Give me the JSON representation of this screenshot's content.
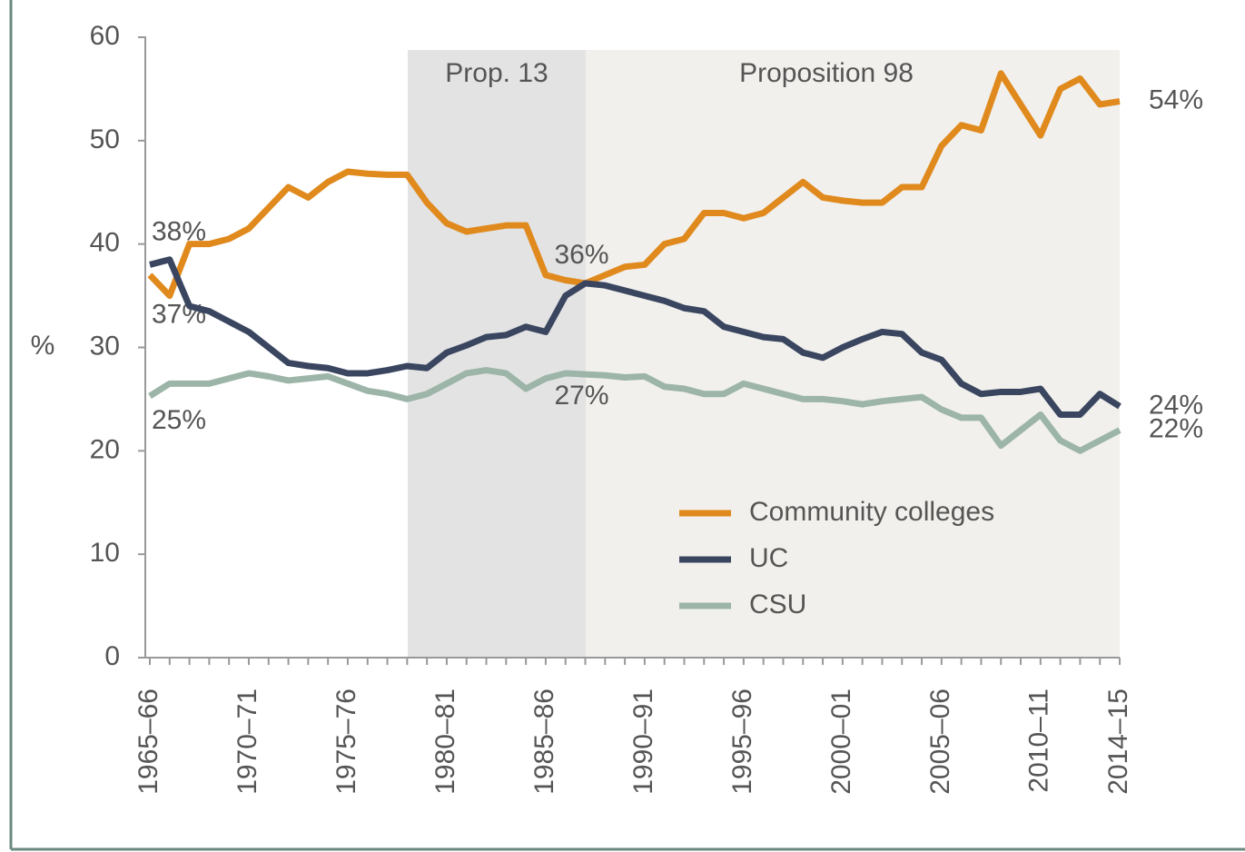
{
  "chart_data": {
    "type": "line",
    "y_label": "%",
    "annotations": [
      "Prop. 13",
      "Proposition 98"
    ],
    "categories": [
      "1965–66",
      null,
      null,
      null,
      null,
      "1970–71",
      null,
      null,
      null,
      null,
      "1975–76",
      null,
      null,
      null,
      null,
      "1980–81",
      null,
      null,
      null,
      null,
      "1985–86",
      null,
      null,
      null,
      null,
      "1990–91",
      null,
      null,
      null,
      null,
      "1995–96",
      null,
      null,
      null,
      null,
      "2000–01",
      null,
      null,
      null,
      null,
      "2005–06",
      null,
      null,
      null,
      null,
      "2010–11",
      null,
      null,
      null,
      "2014–15"
    ],
    "series": [
      {
        "name": "Community colleges",
        "color": "#e08a1e",
        "values": [
          37,
          35,
          40,
          40,
          40.5,
          41.5,
          43.5,
          45.5,
          44.5,
          46,
          47,
          46.8,
          46.7,
          46.7,
          44,
          42,
          41.2,
          41.5,
          41.8,
          41.8,
          37,
          36.5,
          36.2,
          37,
          37.8,
          38,
          40,
          40.5,
          43,
          43,
          42.5,
          43,
          44.5,
          46,
          44.5,
          44.2,
          44,
          44,
          45.5,
          45.5,
          49.5,
          51.5,
          51,
          56.5,
          53.5,
          50.5,
          55,
          56,
          53.5,
          53.8
        ],
        "value_labels": [
          "37%",
          null,
          null,
          null,
          null,
          null,
          null,
          null,
          null,
          null,
          null,
          null,
          null,
          null,
          null,
          null,
          null,
          null,
          null,
          null,
          null,
          null,
          null,
          null,
          null,
          null,
          null,
          null,
          null,
          null,
          null,
          null,
          null,
          null,
          null,
          null,
          null,
          null,
          null,
          null,
          null,
          null,
          null,
          null,
          null,
          null,
          null,
          null,
          null,
          "54%"
        ]
      },
      {
        "name": "UC",
        "color": "#3a4660",
        "values": [
          38,
          38.5,
          34,
          33.5,
          32.5,
          31.5,
          30,
          28.5,
          28.2,
          28,
          27.5,
          27.5,
          27.8,
          28.2,
          28,
          29.5,
          30.2,
          31,
          31.2,
          32,
          31.5,
          35,
          36.2,
          36,
          35.5,
          35,
          34.5,
          33.8,
          33.5,
          32,
          31.5,
          31,
          30.8,
          29.5,
          29,
          30,
          30.8,
          31.5,
          31.3,
          29.5,
          28.8,
          26.5,
          25.5,
          25.7,
          25.7,
          26,
          23.5,
          23.5,
          25.5,
          24.3
        ],
        "value_labels": [
          "38%",
          null,
          null,
          null,
          null,
          null,
          null,
          null,
          null,
          null,
          null,
          null,
          null,
          null,
          null,
          null,
          null,
          null,
          null,
          null,
          null,
          null,
          "36%",
          null,
          null,
          null,
          null,
          null,
          null,
          null,
          null,
          null,
          null,
          null,
          null,
          null,
          null,
          null,
          null,
          null,
          null,
          null,
          null,
          null,
          null,
          null,
          null,
          null,
          null,
          "24%"
        ]
      },
      {
        "name": "CSU",
        "color": "#9cb5a8",
        "values": [
          25.3,
          26.5,
          26.5,
          26.5,
          27,
          27.5,
          27.2,
          26.8,
          27,
          27.2,
          26.5,
          25.8,
          25.5,
          25,
          25.5,
          26.5,
          27.5,
          27.8,
          27.5,
          26,
          27,
          27.5,
          27.4,
          27.3,
          27.1,
          27.2,
          26.2,
          26,
          25.5,
          25.5,
          26.5,
          26,
          25.5,
          25,
          25,
          24.8,
          24.5,
          24.8,
          25,
          25.2,
          24,
          23.2,
          23.2,
          20.5,
          22,
          23.5,
          21,
          20,
          21,
          22
        ],
        "value_labels": [
          "25%",
          null,
          null,
          null,
          null,
          null,
          null,
          null,
          null,
          null,
          null,
          null,
          null,
          null,
          null,
          null,
          null,
          null,
          null,
          null,
          null,
          null,
          "27%",
          null,
          null,
          null,
          null,
          null,
          null,
          null,
          null,
          null,
          null,
          null,
          null,
          null,
          null,
          null,
          null,
          null,
          null,
          null,
          null,
          null,
          null,
          null,
          null,
          null,
          null,
          "22%"
        ]
      }
    ],
    "ylim": [
      0,
      60
    ],
    "yticks": [
      0,
      10,
      20,
      30,
      40,
      50,
      60
    ],
    "legend": "lower right"
  }
}
